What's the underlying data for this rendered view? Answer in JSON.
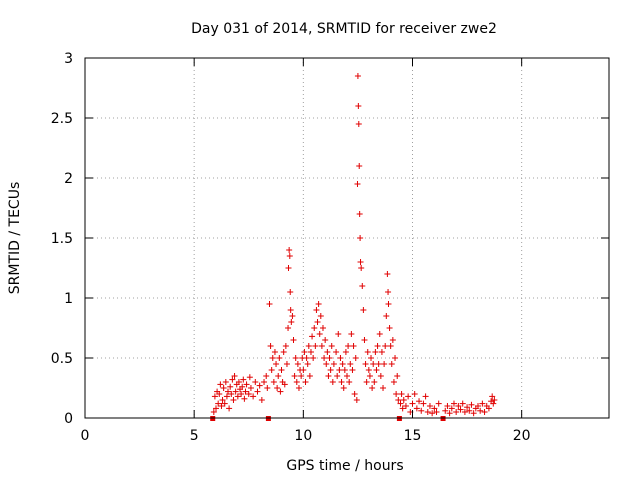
{
  "chart_data": {
    "type": "scatter",
    "title": "Day 031 of 2014, SRMTID for receiver zwe2",
    "xlabel": "GPS time / hours",
    "ylabel": "SRMTID / TECUs",
    "xlim": [
      0,
      24
    ],
    "ylim": [
      0,
      3
    ],
    "xticks": [
      0,
      5,
      10,
      15,
      20
    ],
    "yticks": [
      0,
      0.5,
      1,
      1.5,
      2,
      2.5,
      3
    ],
    "xtick_labels": [
      "0",
      "5",
      "10",
      "15",
      "20"
    ],
    "ytick_labels": [
      "0",
      "0.5",
      "1",
      "1.5",
      "2",
      "2.5",
      "3"
    ],
    "grid": true,
    "marker": "plus",
    "color": "#e00000",
    "gap_markers_x": [
      5.85,
      8.4,
      14.4,
      16.4
    ],
    "series": [
      {
        "name": "SRMTID",
        "points": [
          [
            5.9,
            0.05
          ],
          [
            5.95,
            0.18
          ],
          [
            6.0,
            0.08
          ],
          [
            6.05,
            0.22
          ],
          [
            6.1,
            0.12
          ],
          [
            6.15,
            0.2
          ],
          [
            6.2,
            0.28
          ],
          [
            6.25,
            0.1
          ],
          [
            6.3,
            0.15
          ],
          [
            6.35,
            0.25
          ],
          [
            6.4,
            0.12
          ],
          [
            6.45,
            0.3
          ],
          [
            6.5,
            0.18
          ],
          [
            6.55,
            0.22
          ],
          [
            6.6,
            0.08
          ],
          [
            6.65,
            0.26
          ],
          [
            6.7,
            0.2
          ],
          [
            6.75,
            0.32
          ],
          [
            6.8,
            0.15
          ],
          [
            6.85,
            0.35
          ],
          [
            6.9,
            0.22
          ],
          [
            6.95,
            0.28
          ],
          [
            7.0,
            0.18
          ],
          [
            7.05,
            0.3
          ],
          [
            7.1,
            0.24
          ],
          [
            7.15,
            0.2
          ],
          [
            7.2,
            0.26
          ],
          [
            7.25,
            0.32
          ],
          [
            7.3,
            0.16
          ],
          [
            7.35,
            0.22
          ],
          [
            7.4,
            0.28
          ],
          [
            7.5,
            0.2
          ],
          [
            7.55,
            0.34
          ],
          [
            7.6,
            0.25
          ],
          [
            7.7,
            0.18
          ],
          [
            7.8,
            0.3
          ],
          [
            7.9,
            0.22
          ],
          [
            8.0,
            0.27
          ],
          [
            8.1,
            0.15
          ],
          [
            8.2,
            0.3
          ],
          [
            8.3,
            0.35
          ],
          [
            8.35,
            0.25
          ],
          [
            8.45,
            0.95
          ],
          [
            8.5,
            0.6
          ],
          [
            8.55,
            0.4
          ],
          [
            8.6,
            0.5
          ],
          [
            8.65,
            0.3
          ],
          [
            8.7,
            0.55
          ],
          [
            8.75,
            0.45
          ],
          [
            8.8,
            0.25
          ],
          [
            8.85,
            0.35
          ],
          [
            8.9,
            0.5
          ],
          [
            8.95,
            0.22
          ],
          [
            9.0,
            0.4
          ],
          [
            9.05,
            0.3
          ],
          [
            9.1,
            0.55
          ],
          [
            9.15,
            0.28
          ],
          [
            9.2,
            0.6
          ],
          [
            9.25,
            0.45
          ],
          [
            9.3,
            0.75
          ],
          [
            9.32,
            1.25
          ],
          [
            9.35,
            1.4
          ],
          [
            9.38,
            1.35
          ],
          [
            9.4,
            1.05
          ],
          [
            9.42,
            0.9
          ],
          [
            9.45,
            0.8
          ],
          [
            9.5,
            0.85
          ],
          [
            9.55,
            0.65
          ],
          [
            9.6,
            0.35
          ],
          [
            9.65,
            0.5
          ],
          [
            9.7,
            0.3
          ],
          [
            9.75,
            0.45
          ],
          [
            9.8,
            0.25
          ],
          [
            9.85,
            0.4
          ],
          [
            9.9,
            0.35
          ],
          [
            9.95,
            0.5
          ],
          [
            10.0,
            0.4
          ],
          [
            10.05,
            0.55
          ],
          [
            10.1,
            0.3
          ],
          [
            10.15,
            0.5
          ],
          [
            10.2,
            0.45
          ],
          [
            10.25,
            0.6
          ],
          [
            10.3,
            0.35
          ],
          [
            10.35,
            0.55
          ],
          [
            10.4,
            0.68
          ],
          [
            10.45,
            0.5
          ],
          [
            10.5,
            0.75
          ],
          [
            10.55,
            0.6
          ],
          [
            10.6,
            0.9
          ],
          [
            10.65,
            0.8
          ],
          [
            10.7,
            0.95
          ],
          [
            10.75,
            0.7
          ],
          [
            10.8,
            0.85
          ],
          [
            10.85,
            0.6
          ],
          [
            10.9,
            0.75
          ],
          [
            10.95,
            0.5
          ],
          [
            11.0,
            0.65
          ],
          [
            11.05,
            0.45
          ],
          [
            11.1,
            0.55
          ],
          [
            11.15,
            0.35
          ],
          [
            11.2,
            0.5
          ],
          [
            11.25,
            0.4
          ],
          [
            11.3,
            0.6
          ],
          [
            11.35,
            0.3
          ],
          [
            11.4,
            0.45
          ],
          [
            11.5,
            0.55
          ],
          [
            11.55,
            0.35
          ],
          [
            11.6,
            0.7
          ],
          [
            11.65,
            0.4
          ],
          [
            11.7,
            0.5
          ],
          [
            11.75,
            0.3
          ],
          [
            11.8,
            0.45
          ],
          [
            11.85,
            0.25
          ],
          [
            11.9,
            0.4
          ],
          [
            11.95,
            0.55
          ],
          [
            12.0,
            0.35
          ],
          [
            12.05,
            0.6
          ],
          [
            12.1,
            0.3
          ],
          [
            12.15,
            0.45
          ],
          [
            12.2,
            0.7
          ],
          [
            12.25,
            0.4
          ],
          [
            12.3,
            0.6
          ],
          [
            12.35,
            0.2
          ],
          [
            12.4,
            0.5
          ],
          [
            12.45,
            0.15
          ],
          [
            12.48,
            1.95
          ],
          [
            12.5,
            2.85
          ],
          [
            12.52,
            2.6
          ],
          [
            12.54,
            2.45
          ],
          [
            12.56,
            2.1
          ],
          [
            12.58,
            1.7
          ],
          [
            12.6,
            1.5
          ],
          [
            12.62,
            1.3
          ],
          [
            12.65,
            1.25
          ],
          [
            12.7,
            1.1
          ],
          [
            12.75,
            0.9
          ],
          [
            12.8,
            0.65
          ],
          [
            12.85,
            0.45
          ],
          [
            12.9,
            0.3
          ],
          [
            12.95,
            0.55
          ],
          [
            13.0,
            0.4
          ],
          [
            13.05,
            0.35
          ],
          [
            13.1,
            0.5
          ],
          [
            13.15,
            0.25
          ],
          [
            13.2,
            0.45
          ],
          [
            13.25,
            0.3
          ],
          [
            13.3,
            0.55
          ],
          [
            13.35,
            0.4
          ],
          [
            13.4,
            0.6
          ],
          [
            13.45,
            0.45
          ],
          [
            13.5,
            0.7
          ],
          [
            13.55,
            0.35
          ],
          [
            13.6,
            0.55
          ],
          [
            13.65,
            0.25
          ],
          [
            13.7,
            0.45
          ],
          [
            13.75,
            0.6
          ],
          [
            13.8,
            0.85
          ],
          [
            13.85,
            1.2
          ],
          [
            13.88,
            1.05
          ],
          [
            13.9,
            0.95
          ],
          [
            13.95,
            0.75
          ],
          [
            14.0,
            0.6
          ],
          [
            14.05,
            0.45
          ],
          [
            14.1,
            0.65
          ],
          [
            14.15,
            0.3
          ],
          [
            14.2,
            0.5
          ],
          [
            14.25,
            0.2
          ],
          [
            14.3,
            0.35
          ],
          [
            14.35,
            0.15
          ],
          [
            14.45,
            0.12
          ],
          [
            14.5,
            0.2
          ],
          [
            14.55,
            0.08
          ],
          [
            14.6,
            0.15
          ],
          [
            14.7,
            0.1
          ],
          [
            14.8,
            0.18
          ],
          [
            14.9,
            0.05
          ],
          [
            15.0,
            0.12
          ],
          [
            15.1,
            0.2
          ],
          [
            15.2,
            0.08
          ],
          [
            15.3,
            0.14
          ],
          [
            15.4,
            0.06
          ],
          [
            15.5,
            0.12
          ],
          [
            15.6,
            0.18
          ],
          [
            15.7,
            0.05
          ],
          [
            15.8,
            0.1
          ],
          [
            15.9,
            0.04
          ],
          [
            16.0,
            0.08
          ],
          [
            16.1,
            0.05
          ],
          [
            16.2,
            0.12
          ],
          [
            16.5,
            0.06
          ],
          [
            16.6,
            0.1
          ],
          [
            16.7,
            0.04
          ],
          [
            16.8,
            0.08
          ],
          [
            16.9,
            0.12
          ],
          [
            17.0,
            0.05
          ],
          [
            17.1,
            0.1
          ],
          [
            17.2,
            0.07
          ],
          [
            17.3,
            0.12
          ],
          [
            17.4,
            0.05
          ],
          [
            17.5,
            0.09
          ],
          [
            17.6,
            0.06
          ],
          [
            17.7,
            0.11
          ],
          [
            17.8,
            0.04
          ],
          [
            17.9,
            0.08
          ],
          [
            18.0,
            0.1
          ],
          [
            18.1,
            0.06
          ],
          [
            18.2,
            0.12
          ],
          [
            18.3,
            0.05
          ],
          [
            18.4,
            0.1
          ],
          [
            18.5,
            0.08
          ],
          [
            18.6,
            0.14
          ],
          [
            18.65,
            0.18
          ],
          [
            18.7,
            0.12
          ],
          [
            18.75,
            0.15
          ]
        ]
      }
    ]
  }
}
